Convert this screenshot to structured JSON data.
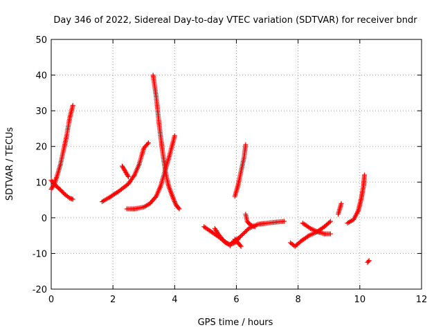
{
  "chart_data": {
    "type": "scatter",
    "title": "Day 346 of 2022, Sidereal Day-to-day VTEC variation (SDTVAR) for receiver bndr",
    "xlabel": "GPS time / hours",
    "ylabel": "SDTVAR / TECUs",
    "xlim": [
      0,
      12
    ],
    "ylim": [
      -20,
      50
    ],
    "xticks": [
      0,
      2,
      4,
      6,
      8,
      10,
      12
    ],
    "yticks": [
      -20,
      -10,
      0,
      10,
      20,
      30,
      40,
      50
    ],
    "grid": true,
    "marker": "plus",
    "color": "#ff0000",
    "tracks": [
      [
        [
          0.0,
          8.0
        ],
        [
          0.1,
          9.5
        ],
        [
          0.2,
          12.0
        ],
        [
          0.3,
          15.0
        ],
        [
          0.4,
          19.0
        ],
        [
          0.5,
          23.0
        ],
        [
          0.6,
          28.0
        ],
        [
          0.7,
          31.5
        ]
      ],
      [
        [
          0.0,
          10.5
        ],
        [
          0.15,
          9.0
        ],
        [
          0.3,
          7.8
        ],
        [
          0.45,
          6.5
        ],
        [
          0.6,
          5.5
        ],
        [
          0.7,
          5.2
        ]
      ],
      [
        [
          1.65,
          4.5
        ],
        [
          1.9,
          5.8
        ],
        [
          2.2,
          7.5
        ],
        [
          2.5,
          9.5
        ],
        [
          2.7,
          12.0
        ],
        [
          2.85,
          15.0
        ],
        [
          3.0,
          19.5
        ],
        [
          3.15,
          21.0
        ]
      ],
      [
        [
          2.3,
          14.5
        ],
        [
          2.4,
          13.0
        ],
        [
          2.5,
          11.5
        ]
      ],
      [
        [
          2.45,
          2.5
        ],
        [
          2.7,
          2.5
        ],
        [
          3.0,
          3.0
        ],
        [
          3.2,
          4.0
        ],
        [
          3.4,
          6.0
        ],
        [
          3.55,
          9.0
        ],
        [
          3.7,
          13.5
        ],
        [
          3.85,
          18.0
        ],
        [
          4.0,
          23.0
        ]
      ],
      [
        [
          3.3,
          40.0
        ],
        [
          3.4,
          34.0
        ],
        [
          3.5,
          26.0
        ],
        [
          3.6,
          19.0
        ],
        [
          3.7,
          13.0
        ],
        [
          3.8,
          9.0
        ],
        [
          3.95,
          5.5
        ],
        [
          4.05,
          3.5
        ],
        [
          4.15,
          2.5
        ]
      ],
      [
        [
          4.95,
          -2.5
        ],
        [
          5.2,
          -4.0
        ],
        [
          5.45,
          -5.5
        ],
        [
          5.65,
          -7.0
        ],
        [
          5.8,
          -7.5
        ],
        [
          5.95,
          -7.0
        ],
        [
          6.1,
          -5.5
        ]
      ],
      [
        [
          5.3,
          -3.0
        ],
        [
          5.45,
          -5.0
        ],
        [
          5.6,
          -6.5
        ],
        [
          5.8,
          -7.8
        ]
      ],
      [
        [
          5.85,
          -7.0
        ],
        [
          6.1,
          -5.5
        ],
        [
          6.4,
          -3.0
        ],
        [
          6.7,
          -1.8
        ],
        [
          7.0,
          -1.5
        ],
        [
          7.3,
          -1.2
        ],
        [
          7.55,
          -1.0
        ]
      ],
      [
        [
          5.95,
          -6.0
        ],
        [
          6.05,
          -7.0
        ],
        [
          6.15,
          -8.0
        ]
      ],
      [
        [
          5.95,
          6.0
        ],
        [
          6.05,
          9.0
        ],
        [
          6.15,
          13.0
        ],
        [
          6.25,
          17.0
        ],
        [
          6.3,
          20.5
        ]
      ],
      [
        [
          6.3,
          1.0
        ],
        [
          6.35,
          -1.0
        ],
        [
          6.45,
          -2.0
        ],
        [
          6.6,
          -2.5
        ]
      ],
      [
        [
          7.75,
          -7.0
        ],
        [
          7.9,
          -8.0
        ],
        [
          8.1,
          -6.5
        ],
        [
          8.35,
          -5.0
        ],
        [
          8.6,
          -4.0
        ],
        [
          8.85,
          -2.5
        ],
        [
          9.05,
          -1.0
        ]
      ],
      [
        [
          8.15,
          -1.5
        ],
        [
          8.4,
          -3.0
        ],
        [
          8.65,
          -4.0
        ],
        [
          8.85,
          -4.5
        ],
        [
          9.05,
          -4.5
        ]
      ],
      [
        [
          9.3,
          1.0
        ],
        [
          9.35,
          2.5
        ],
        [
          9.4,
          4.0
        ]
      ],
      [
        [
          9.6,
          -1.5
        ],
        [
          9.8,
          -0.5
        ],
        [
          9.95,
          2.0
        ],
        [
          10.05,
          5.5
        ],
        [
          10.12,
          9.0
        ],
        [
          10.15,
          12.0
        ]
      ],
      [
        [
          10.25,
          -12.5
        ],
        [
          10.3,
          -12.0
        ]
      ]
    ]
  }
}
